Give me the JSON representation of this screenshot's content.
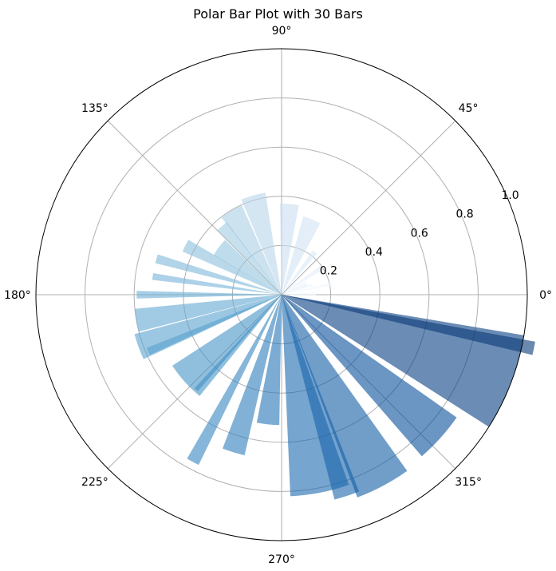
{
  "chart_data": {
    "type": "bar",
    "subtype": "polar",
    "title": "Polar Bar Plot with 30 Bars",
    "xlabel": "",
    "ylabel": "",
    "rlim": [
      0,
      1.0
    ],
    "grid": true,
    "angle_tick_labels": [
      "0°",
      "45°",
      "90°",
      "135°",
      "180°",
      "225°",
      "270°",
      "315°"
    ],
    "angle_ticks_deg": [
      0,
      45,
      90,
      135,
      180,
      225,
      270,
      315
    ],
    "radial_tick_labels": [
      "0.2",
      "0.4",
      "0.6",
      "0.8",
      "1.0"
    ],
    "radial_ticks": [
      0.2,
      0.4,
      0.6,
      0.8,
      1.0
    ],
    "colormap": "Blues",
    "bar_alpha": 0.6,
    "bars": [
      {
        "theta_deg": 1,
        "width_deg": 8,
        "radius": 0.14
      },
      {
        "theta_deg": 12,
        "width_deg": 3,
        "radius": 0.21
      },
      {
        "theta_deg": 18,
        "width_deg": 4,
        "radius": 0.13
      },
      {
        "theta_deg": 23,
        "width_deg": 12,
        "radius": 0.11
      },
      {
        "theta_deg": 34,
        "width_deg": 6,
        "radius": 0.2
      },
      {
        "theta_deg": 52,
        "width_deg": 6,
        "radius": 0.22
      },
      {
        "theta_deg": 68,
        "width_deg": 13,
        "radius": 0.33
      },
      {
        "theta_deg": 85,
        "width_deg": 12,
        "radius": 0.37
      },
      {
        "theta_deg": 106,
        "width_deg": 14,
        "radius": 0.42
      },
      {
        "theta_deg": 121,
        "width_deg": 14,
        "radius": 0.4
      },
      {
        "theta_deg": 131,
        "width_deg": 8,
        "radius": 0.37
      },
      {
        "theta_deg": 143,
        "width_deg": 14,
        "radius": 0.32
      },
      {
        "theta_deg": 153,
        "width_deg": 7,
        "radius": 0.44
      },
      {
        "theta_deg": 164,
        "width_deg": 4,
        "radius": 0.53
      },
      {
        "theta_deg": 172,
        "width_deg": 3,
        "radius": 0.53
      },
      {
        "theta_deg": 180,
        "width_deg": 3,
        "radius": 0.59
      },
      {
        "theta_deg": 190,
        "width_deg": 9,
        "radius": 0.6
      },
      {
        "theta_deg": 200,
        "width_deg": 10,
        "radius": 0.62
      },
      {
        "theta_deg": 203,
        "width_deg": 3,
        "radius": 0.59
      },
      {
        "theta_deg": 222,
        "width_deg": 18,
        "radius": 0.53
      },
      {
        "theta_deg": 228,
        "width_deg": 2,
        "radius": 0.52
      },
      {
        "theta_deg": 242,
        "width_deg": 4,
        "radius": 0.77
      },
      {
        "theta_deg": 253,
        "width_deg": 8,
        "radius": 0.67
      },
      {
        "theta_deg": 264,
        "width_deg": 10,
        "radius": 0.53
      },
      {
        "theta_deg": 281,
        "width_deg": 17,
        "radius": 0.82
      },
      {
        "theta_deg": 288,
        "width_deg": 7,
        "radius": 0.86
      },
      {
        "theta_deg": 298,
        "width_deg": 15,
        "radius": 0.88
      },
      {
        "theta_deg": 318,
        "width_deg": 14,
        "radius": 0.87
      },
      {
        "theta_deg": 339,
        "width_deg": 23,
        "radius": 1.0
      },
      {
        "theta_deg": 348,
        "width_deg": 3,
        "radius": 1.05
      }
    ]
  }
}
